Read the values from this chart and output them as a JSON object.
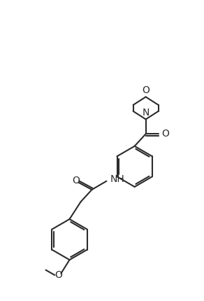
{
  "bg_color": "#ffffff",
  "line_color": "#2b2b2b",
  "line_width": 1.5,
  "font_size": 10,
  "figsize": [
    2.92,
    4.3
  ],
  "dpi": 100,
  "xlim": [
    0,
    10
  ],
  "ylim": [
    0,
    14.75
  ]
}
